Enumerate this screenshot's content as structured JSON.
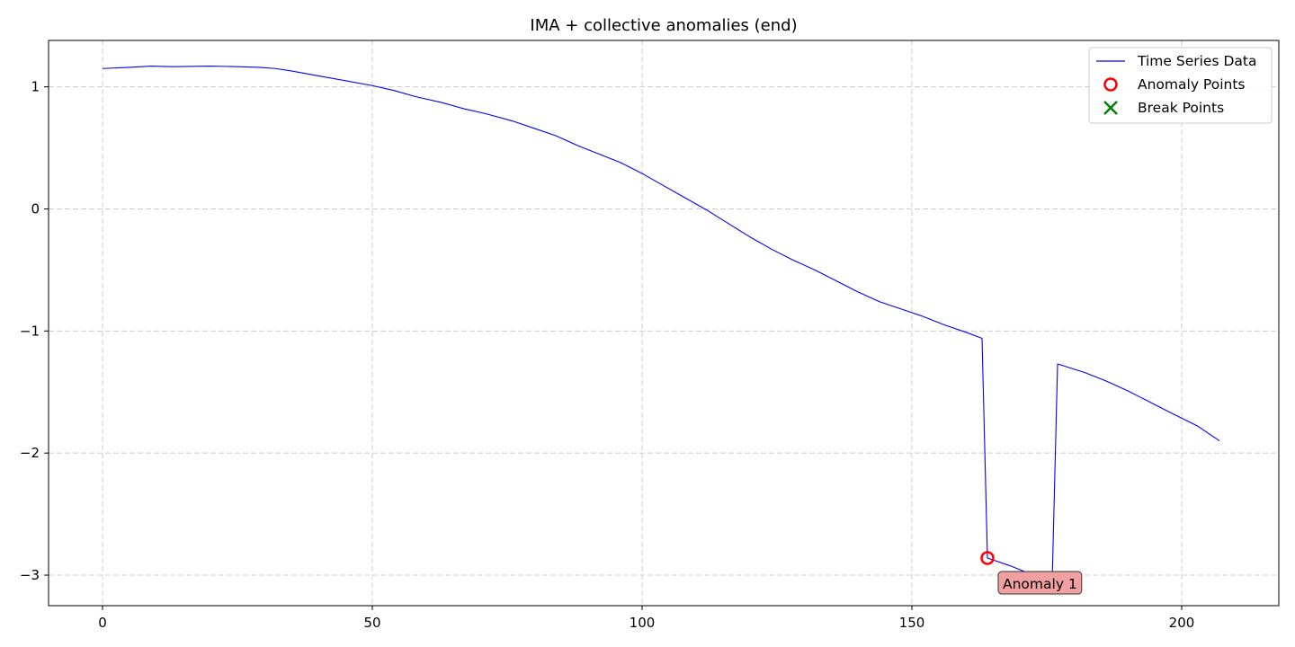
{
  "chart_data": {
    "type": "line",
    "title": "IMA + collective anomalies (end)",
    "xlabel": "",
    "ylabel": "",
    "xlim": [
      -10,
      218
    ],
    "ylim": [
      -3.25,
      1.38
    ],
    "xticks": [
      0,
      50,
      100,
      150,
      200
    ],
    "yticks": [
      1,
      0,
      -1,
      -2,
      -3
    ],
    "ytick_labels": [
      "1",
      "0",
      "−1",
      "−2",
      "−3"
    ],
    "grid": true,
    "legend_position": "top-right",
    "series": [
      {
        "name": "Time Series Data",
        "color": "#0000ff",
        "points": [
          [
            0,
            1.15
          ],
          [
            5,
            1.16
          ],
          [
            9,
            1.17
          ],
          [
            13,
            1.165
          ],
          [
            20,
            1.17
          ],
          [
            25,
            1.165
          ],
          [
            29,
            1.16
          ],
          [
            32,
            1.15
          ],
          [
            35,
            1.13
          ],
          [
            40,
            1.09
          ],
          [
            45,
            1.05
          ],
          [
            50,
            1.01
          ],
          [
            54,
            0.97
          ],
          [
            58,
            0.92
          ],
          [
            63,
            0.87
          ],
          [
            67,
            0.82
          ],
          [
            71,
            0.78
          ],
          [
            76,
            0.72
          ],
          [
            80,
            0.66
          ],
          [
            84,
            0.6
          ],
          [
            88,
            0.52
          ],
          [
            92,
            0.45
          ],
          [
            96,
            0.38
          ],
          [
            100,
            0.29
          ],
          [
            104,
            0.19
          ],
          [
            108,
            0.09
          ],
          [
            112,
            -0.01
          ],
          [
            116,
            -0.12
          ],
          [
            120,
            -0.23
          ],
          [
            124,
            -0.33
          ],
          [
            128,
            -0.42
          ],
          [
            132,
            -0.5
          ],
          [
            136,
            -0.59
          ],
          [
            140,
            -0.68
          ],
          [
            144,
            -0.76
          ],
          [
            148,
            -0.82
          ],
          [
            152,
            -0.88
          ],
          [
            156,
            -0.95
          ],
          [
            160,
            -1.01
          ],
          [
            163,
            -1.06
          ],
          [
            164,
            -2.86
          ],
          [
            168,
            -2.92
          ],
          [
            172,
            -2.99
          ],
          [
            176,
            -3.05
          ],
          [
            177,
            -1.27
          ],
          [
            182,
            -1.34
          ],
          [
            186,
            -1.41
          ],
          [
            190,
            -1.49
          ],
          [
            194,
            -1.58
          ],
          [
            198,
            -1.67
          ],
          [
            203,
            -1.78
          ],
          [
            207,
            -1.9
          ]
        ]
      },
      {
        "name": "Anomaly Points",
        "color": "#ff0000",
        "marker": "circle-open",
        "points": [
          [
            164,
            -2.86
          ]
        ]
      },
      {
        "name": "Break Points",
        "color": "#008000",
        "marker": "x",
        "points": []
      }
    ],
    "annotations": [
      {
        "text": "Anomaly 1",
        "x": 164,
        "y": -2.86,
        "bg_color": "#f0a0a0"
      }
    ]
  }
}
